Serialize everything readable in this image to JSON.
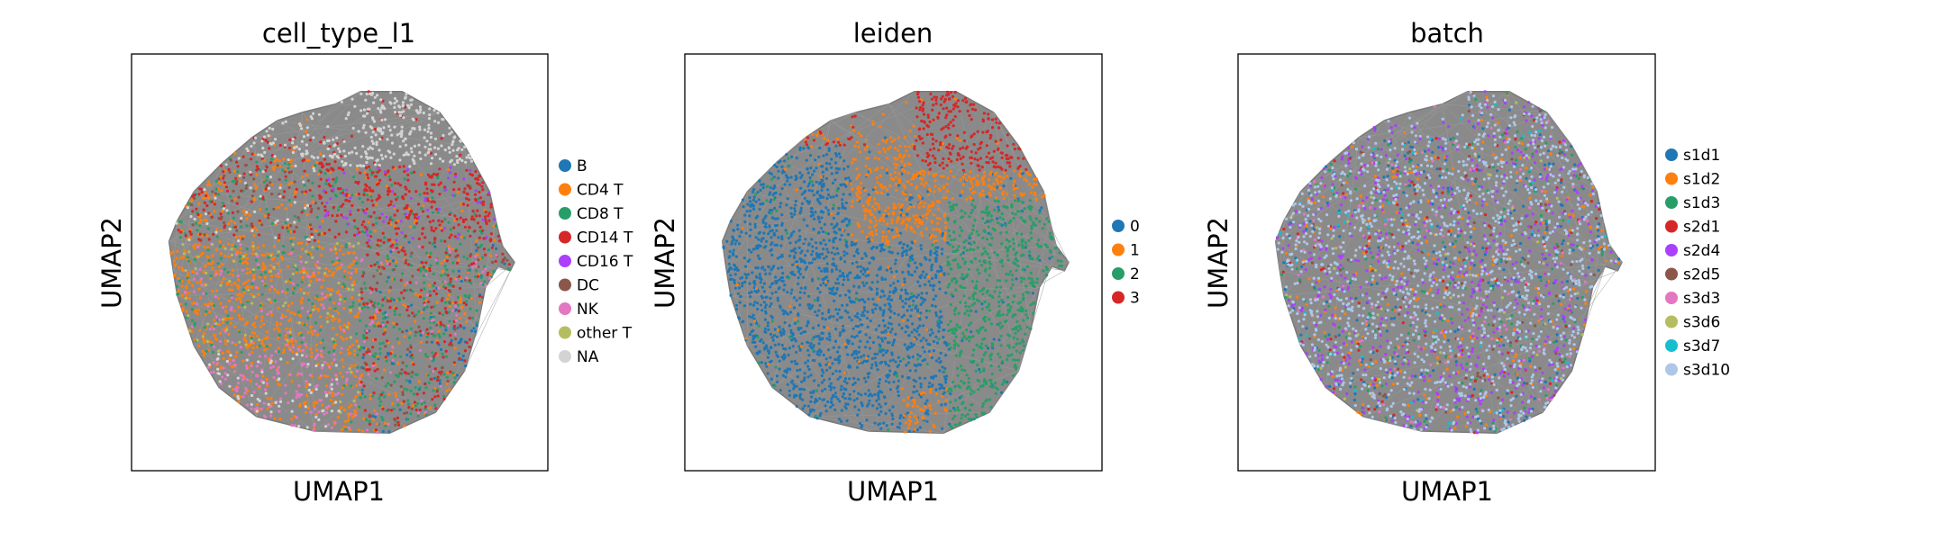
{
  "chart_data": [
    {
      "type": "scatter",
      "title": "cell_type_l1",
      "xlabel": "UMAP1",
      "ylabel": "UMAP2",
      "grid": false,
      "legend_placement": "right",
      "series": [
        {
          "name": "B",
          "color": "#1f77b4"
        },
        {
          "name": "CD4 T",
          "color": "#ff7f0e"
        },
        {
          "name": "CD8 T",
          "color": "#279e68"
        },
        {
          "name": "CD14 T",
          "color": "#d62728"
        },
        {
          "name": "CD16 T",
          "color": "#aa40fc"
        },
        {
          "name": "DC",
          "color": "#8c564b"
        },
        {
          "name": "NK",
          "color": "#e377c2"
        },
        {
          "name": "other T",
          "color": "#b5bd61"
        },
        {
          "name": "NA",
          "color": "#d3d3d3"
        }
      ]
    },
    {
      "type": "scatter",
      "title": "leiden",
      "xlabel": "UMAP1",
      "ylabel": "UMAP2",
      "grid": false,
      "legend_placement": "right",
      "series": [
        {
          "name": "0",
          "color": "#1f77b4"
        },
        {
          "name": "1",
          "color": "#ff7f0e"
        },
        {
          "name": "2",
          "color": "#279e68"
        },
        {
          "name": "3",
          "color": "#d62728"
        }
      ]
    },
    {
      "type": "scatter",
      "title": "batch",
      "xlabel": "UMAP1",
      "ylabel": "UMAP2",
      "grid": false,
      "legend_placement": "right",
      "series": [
        {
          "name": "s1d1",
          "color": "#1f77b4"
        },
        {
          "name": "s1d2",
          "color": "#ff7f0e"
        },
        {
          "name": "s1d3",
          "color": "#279e68"
        },
        {
          "name": "s2d1",
          "color": "#d62728"
        },
        {
          "name": "s2d4",
          "color": "#aa40fc"
        },
        {
          "name": "s2d5",
          "color": "#8c564b"
        },
        {
          "name": "s3d3",
          "color": "#e377c2"
        },
        {
          "name": "s3d6",
          "color": "#b5bd61"
        },
        {
          "name": "s3d7",
          "color": "#17becf"
        },
        {
          "name": "s3d10",
          "color": "#aec7e8"
        }
      ]
    }
  ]
}
